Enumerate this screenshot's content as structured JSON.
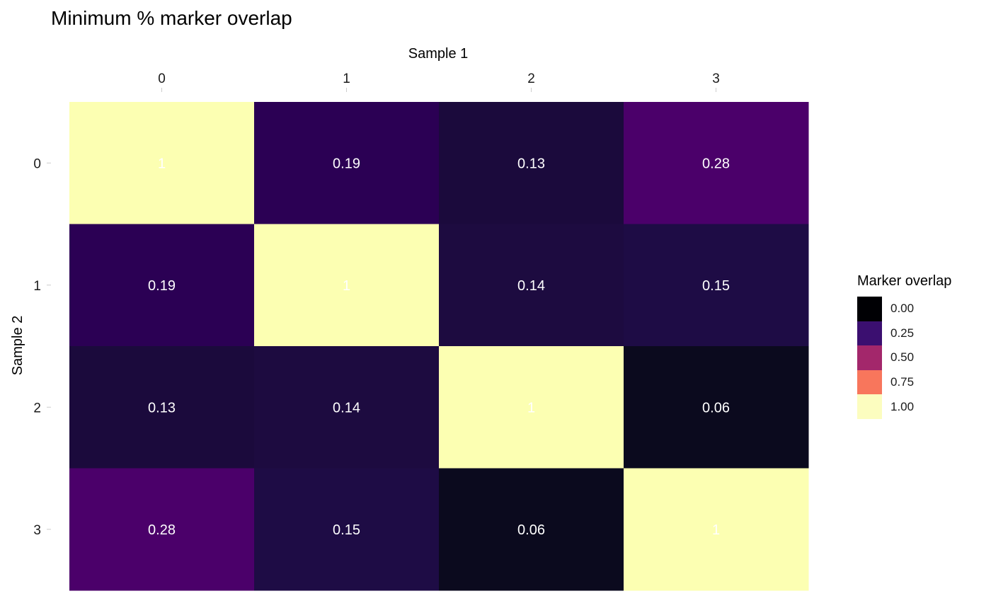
{
  "chart_data": {
    "type": "heatmap",
    "title": "Minimum % marker overlap",
    "xlabel": "Sample 1",
    "ylabel": "Sample 2",
    "x_categories": [
      "0",
      "1",
      "2",
      "3"
    ],
    "y_categories": [
      "0",
      "1",
      "2",
      "3"
    ],
    "x_axis_position": "top",
    "values": [
      [
        1,
        0.19,
        0.13,
        0.28
      ],
      [
        0.19,
        1,
        0.14,
        0.15
      ],
      [
        0.13,
        0.14,
        1,
        0.06
      ],
      [
        0.28,
        0.15,
        0.06,
        1
      ]
    ],
    "labels": [
      [
        "1",
        "0.19",
        "0.13",
        "0.28"
      ],
      [
        "0.19",
        "1",
        "0.14",
        "0.15"
      ],
      [
        "0.13",
        "0.14",
        "1",
        "0.06"
      ],
      [
        "0.28",
        "0.15",
        "0.06",
        "1"
      ]
    ],
    "cell_colors": [
      [
        "#fcffb2",
        "#2b0054",
        "#1b0a3c",
        "#4b006a"
      ],
      [
        "#2b0054",
        "#fcffb2",
        "#1d0b40",
        "#1e0c45"
      ],
      [
        "#1b0a3c",
        "#1d0b40",
        "#fcffb2",
        "#0b0a1e"
      ],
      [
        "#4b006a",
        "#1e0c45",
        "#0b0a1e",
        "#fcffb2"
      ]
    ],
    "color_range": [
      0,
      1
    ],
    "legend": {
      "title": "Marker overlap",
      "position": "right",
      "entries": [
        {
          "label": "0.00",
          "color": "#000004"
        },
        {
          "label": "0.25",
          "color": "#3b0f70"
        },
        {
          "label": "0.50",
          "color": "#a3276b"
        },
        {
          "label": "0.75",
          "color": "#f8765c"
        },
        {
          "label": "1.00",
          "color": "#fcfdbf"
        }
      ]
    },
    "grid": false
  }
}
